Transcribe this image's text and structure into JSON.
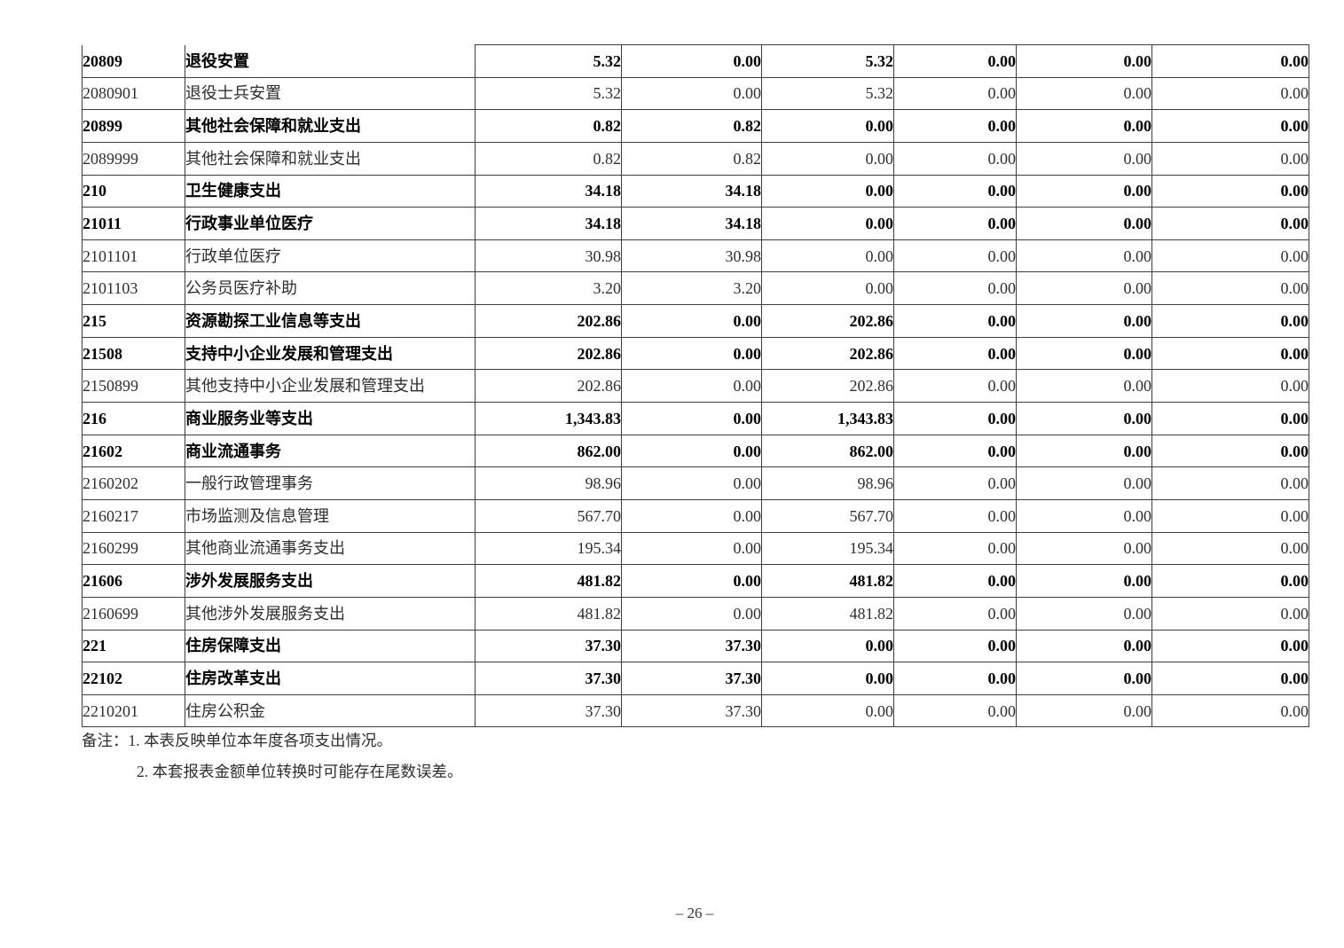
{
  "document": {
    "page_number": "– 26 –"
  },
  "colors": {
    "text": "#000000",
    "border": "#3d3d3d",
    "background": "#ffffff"
  },
  "table": {
    "rows": [
      {
        "code": "20809",
        "name": "退役安置",
        "bold": true,
        "values": [
          "5.32",
          "0.00",
          "5.32",
          "0.00",
          "0.00",
          "0.00"
        ]
      },
      {
        "code": "2080901",
        "name": "退役士兵安置",
        "bold": false,
        "values": [
          "5.32",
          "0.00",
          "5.32",
          "0.00",
          "0.00",
          "0.00"
        ]
      },
      {
        "code": "20899",
        "name": "其他社会保障和就业支出",
        "bold": true,
        "values": [
          "0.82",
          "0.82",
          "0.00",
          "0.00",
          "0.00",
          "0.00"
        ]
      },
      {
        "code": "2089999",
        "name": "其他社会保障和就业支出",
        "bold": false,
        "values": [
          "0.82",
          "0.82",
          "0.00",
          "0.00",
          "0.00",
          "0.00"
        ]
      },
      {
        "code": "210",
        "name": "卫生健康支出",
        "bold": true,
        "values": [
          "34.18",
          "34.18",
          "0.00",
          "0.00",
          "0.00",
          "0.00"
        ]
      },
      {
        "code": "21011",
        "name": "行政事业单位医疗",
        "bold": true,
        "values": [
          "34.18",
          "34.18",
          "0.00",
          "0.00",
          "0.00",
          "0.00"
        ]
      },
      {
        "code": "2101101",
        "name": "行政单位医疗",
        "bold": false,
        "values": [
          "30.98",
          "30.98",
          "0.00",
          "0.00",
          "0.00",
          "0.00"
        ]
      },
      {
        "code": "2101103",
        "name": "公务员医疗补助",
        "bold": false,
        "values": [
          "3.20",
          "3.20",
          "0.00",
          "0.00",
          "0.00",
          "0.00"
        ]
      },
      {
        "code": "215",
        "name": "资源勘探工业信息等支出",
        "bold": true,
        "values": [
          "202.86",
          "0.00",
          "202.86",
          "0.00",
          "0.00",
          "0.00"
        ]
      },
      {
        "code": "21508",
        "name": "支持中小企业发展和管理支出",
        "bold": true,
        "values": [
          "202.86",
          "0.00",
          "202.86",
          "0.00",
          "0.00",
          "0.00"
        ]
      },
      {
        "code": "2150899",
        "name": "其他支持中小企业发展和管理支出",
        "bold": false,
        "values": [
          "202.86",
          "0.00",
          "202.86",
          "0.00",
          "0.00",
          "0.00"
        ]
      },
      {
        "code": "216",
        "name": "商业服务业等支出",
        "bold": true,
        "values": [
          "1,343.83",
          "0.00",
          "1,343.83",
          "0.00",
          "0.00",
          "0.00"
        ]
      },
      {
        "code": "21602",
        "name": "商业流通事务",
        "bold": true,
        "values": [
          "862.00",
          "0.00",
          "862.00",
          "0.00",
          "0.00",
          "0.00"
        ]
      },
      {
        "code": "2160202",
        "name": "一般行政管理事务",
        "bold": false,
        "values": [
          "98.96",
          "0.00",
          "98.96",
          "0.00",
          "0.00",
          "0.00"
        ]
      },
      {
        "code": "2160217",
        "name": "市场监测及信息管理",
        "bold": false,
        "values": [
          "567.70",
          "0.00",
          "567.70",
          "0.00",
          "0.00",
          "0.00"
        ]
      },
      {
        "code": "2160299",
        "name": "其他商业流通事务支出",
        "bold": false,
        "values": [
          "195.34",
          "0.00",
          "195.34",
          "0.00",
          "0.00",
          "0.00"
        ]
      },
      {
        "code": "21606",
        "name": "涉外发展服务支出",
        "bold": true,
        "values": [
          "481.82",
          "0.00",
          "481.82",
          "0.00",
          "0.00",
          "0.00"
        ]
      },
      {
        "code": "2160699",
        "name": "其他涉外发展服务支出",
        "bold": false,
        "values": [
          "481.82",
          "0.00",
          "481.82",
          "0.00",
          "0.00",
          "0.00"
        ]
      },
      {
        "code": "221",
        "name": "住房保障支出",
        "bold": true,
        "values": [
          "37.30",
          "37.30",
          "0.00",
          "0.00",
          "0.00",
          "0.00"
        ]
      },
      {
        "code": "22102",
        "name": "住房改革支出",
        "bold": true,
        "values": [
          "37.30",
          "37.30",
          "0.00",
          "0.00",
          "0.00",
          "0.00"
        ]
      },
      {
        "code": "2210201",
        "name": "住房公积金",
        "bold": false,
        "values": [
          "37.30",
          "37.30",
          "0.00",
          "0.00",
          "0.00",
          "0.00"
        ]
      }
    ]
  },
  "notes": {
    "prefix": "备注：",
    "line1": "1. 本表反映单位本年度各项支出情况。",
    "line2": "2. 本套报表金额单位转换时可能存在尾数误差。"
  }
}
